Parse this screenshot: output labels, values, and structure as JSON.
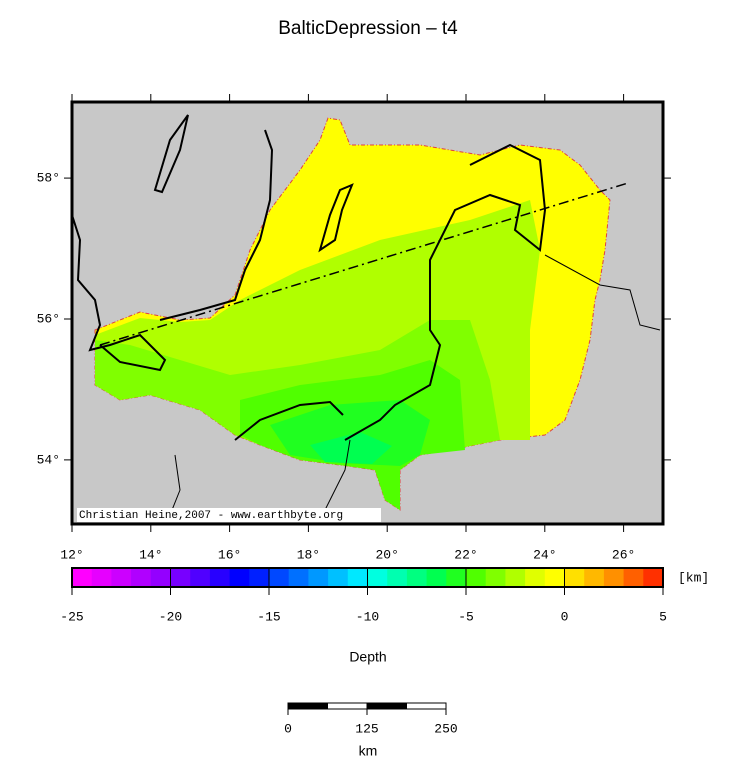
{
  "title": "BalticDepression – t4",
  "map": {
    "xlim": [
      12,
      27
    ],
    "ylim": [
      53.09,
      59.08
    ],
    "xticks": [
      {
        "value": 12,
        "label": "12°"
      },
      {
        "value": 14,
        "label": "14°"
      },
      {
        "value": 16,
        "label": "16°"
      },
      {
        "value": 18,
        "label": "18°"
      },
      {
        "value": 20,
        "label": "20°"
      },
      {
        "value": 22,
        "label": "22°"
      },
      {
        "value": 24,
        "label": "24°"
      },
      {
        "value": 26,
        "label": "26°"
      }
    ],
    "yticks": [
      {
        "value": 54,
        "label": "54°"
      },
      {
        "value": 56,
        "label": "56°"
      },
      {
        "value": 58,
        "label": "58°"
      }
    ],
    "credit": "Christian Heine,2007 - www.earthbyte.org"
  },
  "colorbar": {
    "label": "Depth",
    "unit": "[km]",
    "lim": [
      -25,
      5
    ],
    "ticks": [
      -25,
      -20,
      -15,
      -10,
      -5,
      0,
      5
    ],
    "colors": [
      "#ff00ff",
      "#e600ff",
      "#cc00ff",
      "#b000ff",
      "#9400ff",
      "#7800ff",
      "#5000ff",
      "#2800ff",
      "#0000ff",
      "#0020ff",
      "#0048ff",
      "#0070ff",
      "#0098ff",
      "#00c0ff",
      "#00e8ff",
      "#00ffe0",
      "#00ffb0",
      "#00ff80",
      "#00ff50",
      "#20ff20",
      "#50ff00",
      "#80ff00",
      "#b0ff00",
      "#e0ff00",
      "#ffff00",
      "#ffe000",
      "#ffb800",
      "#ff9000",
      "#ff6000",
      "#ff3000"
    ]
  },
  "scalebar": {
    "unit": "km",
    "lim": [
      0,
      250
    ],
    "ticks": [
      0,
      125,
      250
    ]
  }
}
